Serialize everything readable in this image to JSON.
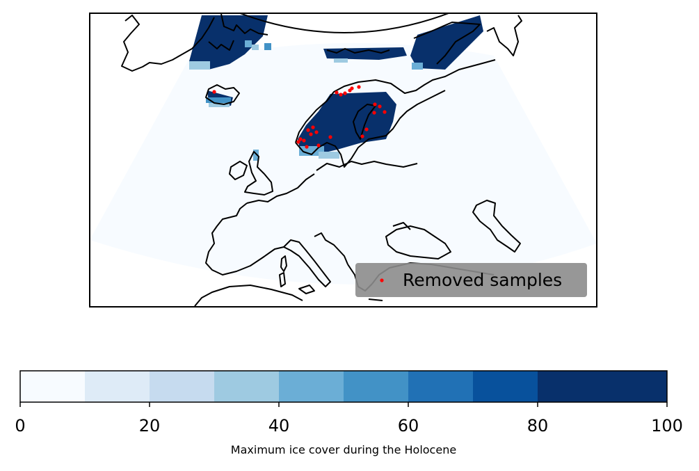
{
  "legend": {
    "label": "Removed samples",
    "marker_color": "#ff0000",
    "background_color": "#8c8c8c"
  },
  "colorbar": {
    "label": "Maximum ice cover during the Holocene",
    "ticks": [
      "0",
      "20",
      "40",
      "60",
      "80",
      "100"
    ],
    "range": [
      0,
      100
    ],
    "step": 10,
    "colors": [
      "#f7fbff",
      "#deebf7",
      "#c6dbef",
      "#9ecae1",
      "#6baed6",
      "#4292c6",
      "#2171b5",
      "#08519c",
      "#08306b",
      "#08306b"
    ]
  },
  "map": {
    "region": "Europe / North Atlantic",
    "ocean_color": "#f7fbff",
    "coastline_color": "#000000",
    "ice_color": "#08306b"
  }
}
